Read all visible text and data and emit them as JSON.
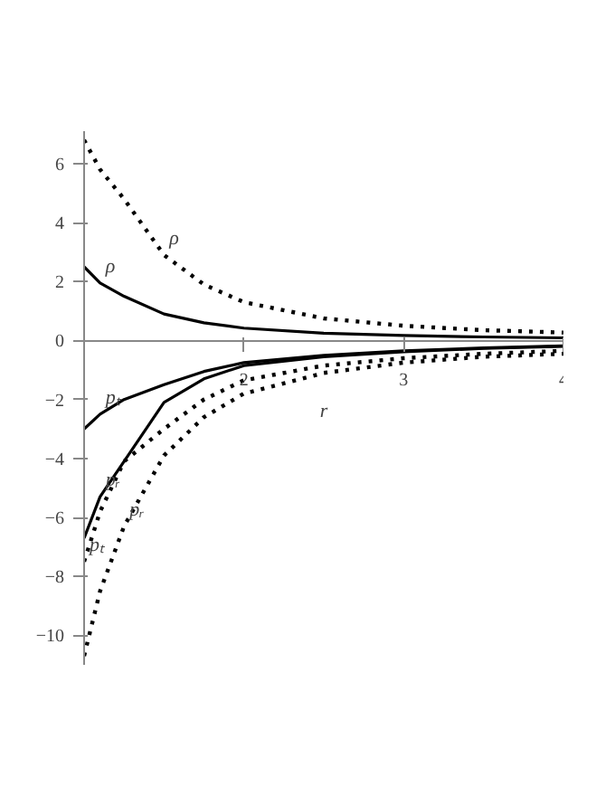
{
  "chart_data": {
    "type": "line",
    "xlabel": "r",
    "x": [
      1,
      1.1,
      1.25,
      1.5,
      1.75,
      2,
      2.5,
      3,
      3.5,
      4
    ],
    "series": [
      {
        "color": "#000000",
        "line_style": "solid",
        "values": [
          2.5,
          1.95,
          1.5,
          0.9,
          0.6,
          0.42,
          0.25,
          0.17,
          0.12,
          0.09
        ]
      },
      {
        "color": "#000000",
        "line_style": "dotted",
        "values": [
          6.8,
          5.8,
          4.8,
          2.9,
          1.9,
          1.3,
          0.75,
          0.5,
          0.35,
          0.27
        ]
      },
      {
        "color": "#000000",
        "line_style": "solid",
        "values": [
          -3,
          -2.5,
          -2.0,
          -1.5,
          -1.05,
          -0.75,
          -0.5,
          -0.35,
          -0.25,
          -0.18
        ]
      },
      {
        "color": "#000000",
        "line_style": "solid",
        "values": [
          -6.7,
          -5.3,
          -4.1,
          -2.1,
          -1.3,
          -0.85,
          -0.55,
          -0.38,
          -0.27,
          -0.2
        ]
      },
      {
        "color": "#000000",
        "line_style": "dotted",
        "values": [
          -7.5,
          -5.8,
          -4.1,
          -3.0,
          -2.0,
          -1.35,
          -0.85,
          -0.6,
          -0.45,
          -0.35
        ]
      },
      {
        "color": "#000000",
        "line_style": "dotted",
        "values": [
          -10.7,
          -8.5,
          -6.3,
          -3.9,
          -2.6,
          -1.8,
          -1.1,
          -0.75,
          -0.55,
          -0.45
        ]
      }
    ],
    "annotations": [
      {
        "text": "ρ",
        "x": 1.1,
        "y": 1.95
      },
      {
        "text": "ρ",
        "x": 1.5,
        "y": 2.9
      },
      {
        "text": "pₜ",
        "x": 1.1,
        "y": -2.5
      },
      {
        "text": "pᵣ",
        "x": 1.1,
        "y": -5.3
      },
      {
        "text": "pᵣ",
        "x": 1.25,
        "y": -6.3
      },
      {
        "text": "pₜ",
        "x": 1,
        "y": -7.5
      }
    ],
    "xlim": [
      1,
      4
    ],
    "ylim": [
      -11,
      7.1
    ],
    "xticks": [
      2,
      3,
      4
    ],
    "yticks": [
      -10,
      -8,
      -6,
      -4,
      -2,
      0,
      2,
      4,
      6
    ],
    "grid": false,
    "marker": "none"
  }
}
